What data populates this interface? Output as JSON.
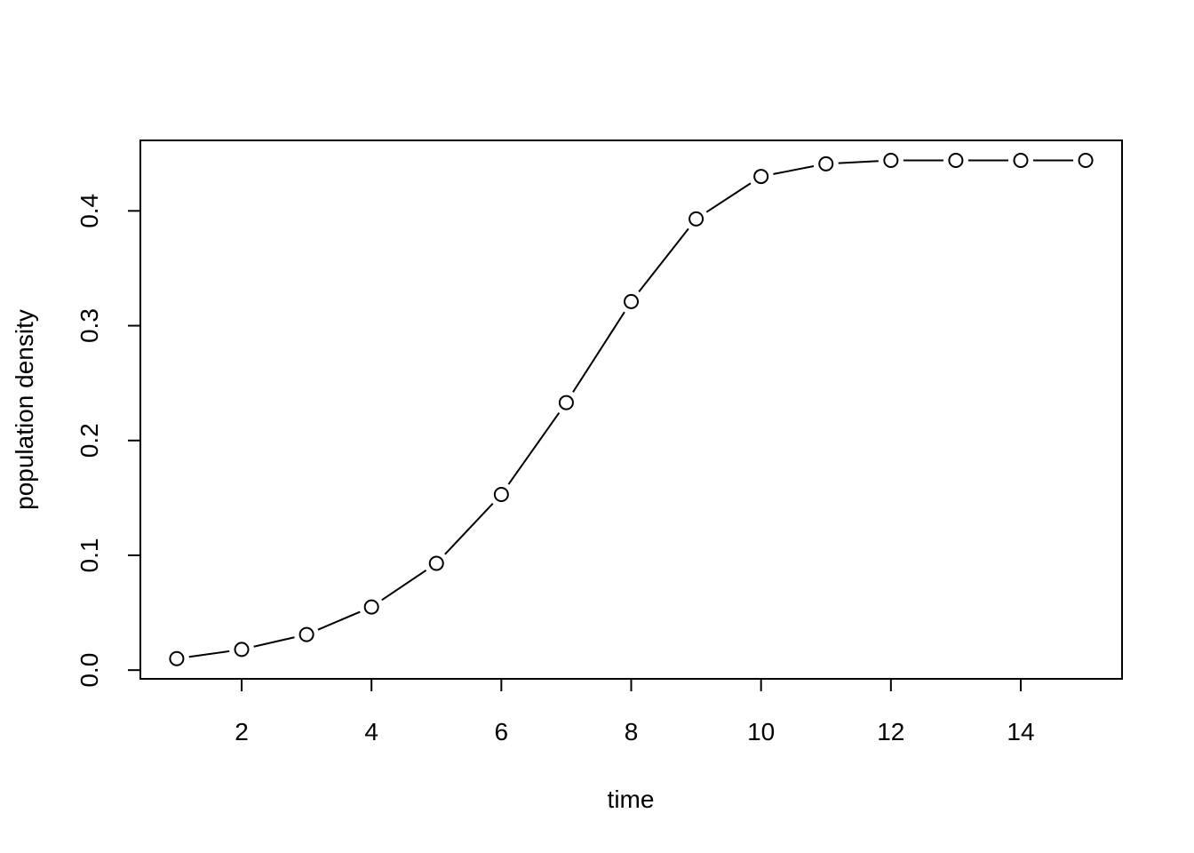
{
  "chart_data": {
    "type": "line",
    "title": "",
    "xlabel": "time",
    "ylabel": "population density",
    "xlim": [
      0.44,
      15.56
    ],
    "ylim": [
      -0.0076,
      0.4614
    ],
    "xticks": [
      2,
      4,
      6,
      8,
      10,
      12,
      14
    ],
    "yticks": [
      0.0,
      0.1,
      0.2,
      0.3,
      0.4
    ],
    "xtick_labels": [
      "2",
      "4",
      "6",
      "8",
      "10",
      "12",
      "14"
    ],
    "ytick_labels": [
      "0.0",
      "0.1",
      "0.2",
      "0.3",
      "0.4"
    ],
    "grid": false,
    "legend": "none",
    "marker": "open-circle",
    "line_color": "#000000",
    "series": [
      {
        "x": [
          1,
          2,
          3,
          4,
          5,
          6,
          7,
          8,
          9,
          10,
          11,
          12,
          13,
          14,
          15
        ],
        "values": [
          0.01,
          0.018,
          0.031,
          0.055,
          0.093,
          0.153,
          0.233,
          0.321,
          0.393,
          0.43,
          0.441,
          0.444,
          0.444,
          0.444,
          0.444
        ]
      }
    ]
  }
}
